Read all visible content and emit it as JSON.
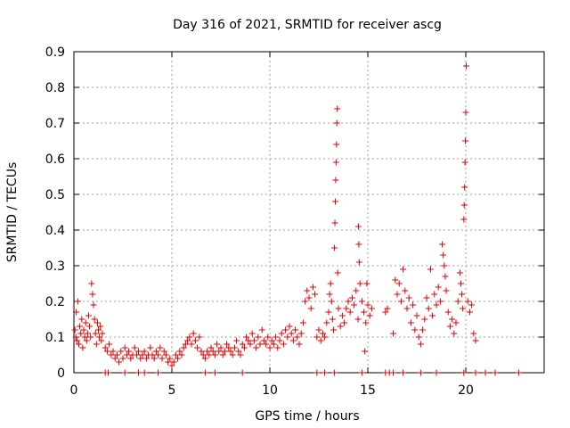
{
  "chart_data": {
    "type": "scatter",
    "title": "Day 316 of 2021, SRMTID for receiver ascg",
    "xlabel": "GPS time / hours",
    "ylabel": "SRMTID / TECUs",
    "xlim": [
      0,
      24
    ],
    "ylim": [
      0,
      0.9
    ],
    "x_ticks": [
      0,
      5,
      10,
      15,
      20
    ],
    "x_tick_labels": [
      "0",
      "5",
      "10",
      "15",
      "20"
    ],
    "y_ticks": [
      0,
      0.1,
      0.2,
      0.3,
      0.4,
      0.5,
      0.6,
      0.7,
      0.8,
      0.9
    ],
    "y_tick_labels": [
      "0",
      "0.1",
      "0.2",
      "0.3",
      "0.4",
      "0.5",
      "0.6",
      "0.7",
      "0.8",
      "0.9"
    ],
    "grid": true,
    "marker": "+",
    "color": "#e00000",
    "series": [
      {
        "name": "SRMTID",
        "points": [
          [
            0.05,
            0.12
          ],
          [
            0.1,
            0.1
          ],
          [
            0.12,
            0.17
          ],
          [
            0.15,
            0.09
          ],
          [
            0.2,
            0.2
          ],
          [
            0.25,
            0.08
          ],
          [
            0.3,
            0.13
          ],
          [
            0.35,
            0.11
          ],
          [
            0.4,
            0.15
          ],
          [
            0.45,
            0.07
          ],
          [
            0.5,
            0.12
          ],
          [
            0.55,
            0.1
          ],
          [
            0.6,
            0.14
          ],
          [
            0.65,
            0.09
          ],
          [
            0.7,
            0.11
          ],
          [
            0.75,
            0.16
          ],
          [
            0.8,
            0.13
          ],
          [
            0.85,
            0.1
          ],
          [
            0.9,
            0.25
          ],
          [
            0.95,
            0.22
          ],
          [
            1.0,
            0.19
          ],
          [
            1.05,
            0.15
          ],
          [
            1.1,
            0.11
          ],
          [
            1.15,
            0.08
          ],
          [
            1.2,
            0.14
          ],
          [
            1.25,
            0.12
          ],
          [
            1.3,
            0.1
          ],
          [
            1.35,
            0.13
          ],
          [
            1.4,
            0.09
          ],
          [
            1.45,
            0.11
          ],
          [
            1.6,
            0.07
          ],
          [
            1.7,
            0.06
          ],
          [
            1.8,
            0.08
          ],
          [
            1.9,
            0.05
          ],
          [
            2.0,
            0.06
          ],
          [
            2.1,
            0.04
          ],
          [
            2.2,
            0.05
          ],
          [
            2.3,
            0.03
          ],
          [
            2.4,
            0.06
          ],
          [
            2.5,
            0.04
          ],
          [
            2.6,
            0.07
          ],
          [
            2.7,
            0.05
          ],
          [
            2.8,
            0.06
          ],
          [
            2.9,
            0.04
          ],
          [
            3.0,
            0.05
          ],
          [
            3.1,
            0.07
          ],
          [
            3.2,
            0.05
          ],
          [
            3.3,
            0.06
          ],
          [
            3.4,
            0.04
          ],
          [
            3.5,
            0.05
          ],
          [
            3.6,
            0.06
          ],
          [
            3.7,
            0.04
          ],
          [
            3.8,
            0.05
          ],
          [
            3.9,
            0.07
          ],
          [
            4.0,
            0.05
          ],
          [
            4.1,
            0.04
          ],
          [
            4.2,
            0.06
          ],
          [
            4.3,
            0.05
          ],
          [
            4.4,
            0.07
          ],
          [
            4.5,
            0.04
          ],
          [
            4.6,
            0.06
          ],
          [
            4.7,
            0.05
          ],
          [
            4.8,
            0.03
          ],
          [
            4.9,
            0.04
          ],
          [
            5.0,
            0.02
          ],
          [
            5.1,
            0.03
          ],
          [
            5.2,
            0.05
          ],
          [
            5.3,
            0.04
          ],
          [
            5.4,
            0.06
          ],
          [
            5.5,
            0.05
          ],
          [
            5.6,
            0.07
          ],
          [
            5.7,
            0.08
          ],
          [
            5.8,
            0.09
          ],
          [
            5.9,
            0.1
          ],
          [
            6.0,
            0.08
          ],
          [
            6.1,
            0.11
          ],
          [
            6.2,
            0.09
          ],
          [
            6.3,
            0.07
          ],
          [
            6.4,
            0.1
          ],
          [
            6.5,
            0.06
          ],
          [
            6.6,
            0.05
          ],
          [
            6.7,
            0.04
          ],
          [
            6.8,
            0.06
          ],
          [
            6.9,
            0.05
          ],
          [
            7.0,
            0.07
          ],
          [
            7.1,
            0.06
          ],
          [
            7.2,
            0.05
          ],
          [
            7.3,
            0.08
          ],
          [
            7.4,
            0.06
          ],
          [
            7.5,
            0.07
          ],
          [
            7.6,
            0.05
          ],
          [
            7.7,
            0.06
          ],
          [
            7.8,
            0.08
          ],
          [
            7.9,
            0.07
          ],
          [
            8.0,
            0.06
          ],
          [
            8.1,
            0.05
          ],
          [
            8.2,
            0.07
          ],
          [
            8.3,
            0.09
          ],
          [
            8.4,
            0.06
          ],
          [
            8.5,
            0.05
          ],
          [
            8.6,
            0.08
          ],
          [
            8.7,
            0.07
          ],
          [
            8.8,
            0.1
          ],
          [
            8.9,
            0.09
          ],
          [
            9.0,
            0.08
          ],
          [
            9.1,
            0.11
          ],
          [
            9.2,
            0.09
          ],
          [
            9.3,
            0.07
          ],
          [
            9.4,
            0.1
          ],
          [
            9.5,
            0.08
          ],
          [
            9.6,
            0.12
          ],
          [
            9.7,
            0.09
          ],
          [
            9.8,
            0.08
          ],
          [
            9.9,
            0.1
          ],
          [
            10.0,
            0.07
          ],
          [
            10.1,
            0.09
          ],
          [
            10.2,
            0.08
          ],
          [
            10.3,
            0.1
          ],
          [
            10.4,
            0.07
          ],
          [
            10.5,
            0.09
          ],
          [
            10.6,
            0.11
          ],
          [
            10.7,
            0.08
          ],
          [
            10.8,
            0.12
          ],
          [
            10.9,
            0.1
          ],
          [
            11.0,
            0.13
          ],
          [
            11.1,
            0.11
          ],
          [
            11.2,
            0.09
          ],
          [
            11.3,
            0.12
          ],
          [
            11.4,
            0.1
          ],
          [
            11.5,
            0.08
          ],
          [
            11.6,
            0.11
          ],
          [
            11.7,
            0.14
          ],
          [
            11.8,
            0.2
          ],
          [
            11.9,
            0.23
          ],
          [
            12.0,
            0.21
          ],
          [
            12.1,
            0.18
          ],
          [
            12.2,
            0.24
          ],
          [
            12.3,
            0.22
          ],
          [
            12.4,
            0.1
          ],
          [
            12.5,
            0.12
          ],
          [
            12.6,
            0.09
          ],
          [
            12.7,
            0.11
          ],
          [
            12.8,
            0.1
          ],
          [
            12.9,
            0.14
          ],
          [
            13.0,
            0.17
          ],
          [
            13.05,
            0.22
          ],
          [
            13.1,
            0.25
          ],
          [
            13.15,
            0.2
          ],
          [
            13.2,
            0.15
          ],
          [
            13.25,
            0.12
          ],
          [
            13.3,
            0.35
          ],
          [
            13.32,
            0.42
          ],
          [
            13.34,
            0.48
          ],
          [
            13.36,
            0.54
          ],
          [
            13.38,
            0.59
          ],
          [
            13.4,
            0.64
          ],
          [
            13.42,
            0.7
          ],
          [
            13.44,
            0.74
          ],
          [
            13.46,
            0.28
          ],
          [
            13.5,
            0.18
          ],
          [
            13.6,
            0.13
          ],
          [
            13.7,
            0.16
          ],
          [
            13.8,
            0.14
          ],
          [
            13.9,
            0.18
          ],
          [
            14.0,
            0.2
          ],
          [
            14.1,
            0.17
          ],
          [
            14.2,
            0.21
          ],
          [
            14.3,
            0.19
          ],
          [
            14.4,
            0.23
          ],
          [
            14.5,
            0.15
          ],
          [
            14.52,
            0.41
          ],
          [
            14.54,
            0.36
          ],
          [
            14.56,
            0.31
          ],
          [
            14.6,
            0.25
          ],
          [
            14.7,
            0.2
          ],
          [
            14.8,
            0.17
          ],
          [
            14.85,
            0.06
          ],
          [
            14.9,
            0.14
          ],
          [
            14.95,
            0.25
          ],
          [
            15.0,
            0.19
          ],
          [
            15.1,
            0.16
          ],
          [
            15.2,
            0.18
          ],
          [
            15.9,
            0.17
          ],
          [
            16.0,
            0.18
          ],
          [
            16.3,
            0.11
          ],
          [
            16.4,
            0.26
          ],
          [
            16.5,
            0.22
          ],
          [
            16.6,
            0.25
          ],
          [
            16.7,
            0.2
          ],
          [
            16.8,
            0.29
          ],
          [
            16.9,
            0.23
          ],
          [
            17.0,
            0.18
          ],
          [
            17.1,
            0.21
          ],
          [
            17.2,
            0.14
          ],
          [
            17.3,
            0.19
          ],
          [
            17.4,
            0.12
          ],
          [
            17.5,
            0.16
          ],
          [
            17.6,
            0.1
          ],
          [
            17.7,
            0.08
          ],
          [
            17.8,
            0.12
          ],
          [
            17.9,
            0.15
          ],
          [
            18.0,
            0.21
          ],
          [
            18.1,
            0.18
          ],
          [
            18.2,
            0.29
          ],
          [
            18.3,
            0.16
          ],
          [
            18.4,
            0.22
          ],
          [
            18.5,
            0.19
          ],
          [
            18.6,
            0.24
          ],
          [
            18.7,
            0.2
          ],
          [
            18.8,
            0.36
          ],
          [
            18.85,
            0.33
          ],
          [
            18.9,
            0.3
          ],
          [
            18.95,
            0.27
          ],
          [
            19.0,
            0.23
          ],
          [
            19.1,
            0.17
          ],
          [
            19.2,
            0.13
          ],
          [
            19.3,
            0.15
          ],
          [
            19.4,
            0.11
          ],
          [
            19.5,
            0.14
          ],
          [
            19.6,
            0.2
          ],
          [
            19.7,
            0.28
          ],
          [
            19.75,
            0.25
          ],
          [
            19.8,
            0.22
          ],
          [
            19.85,
            0.18
          ],
          [
            19.9,
            0.43
          ],
          [
            19.92,
            0.47
          ],
          [
            19.94,
            0.52
          ],
          [
            19.96,
            0.59
          ],
          [
            19.98,
            0.65
          ],
          [
            20.0,
            0.73
          ],
          [
            20.02,
            0.86
          ],
          [
            20.1,
            0.2
          ],
          [
            20.2,
            0.17
          ],
          [
            20.3,
            0.19
          ],
          [
            20.4,
            0.11
          ],
          [
            20.5,
            0.09
          ],
          [
            1.6,
            0.0
          ],
          [
            1.75,
            0.0
          ],
          [
            2.6,
            0.0
          ],
          [
            3.3,
            0.0
          ],
          [
            3.6,
            0.0
          ],
          [
            4.3,
            0.0
          ],
          [
            6.7,
            0.0
          ],
          [
            7.2,
            0.0
          ],
          [
            8.6,
            0.0
          ],
          [
            12.4,
            0.0
          ],
          [
            12.8,
            0.0
          ],
          [
            13.3,
            0.0
          ],
          [
            14.7,
            0.0
          ],
          [
            15.9,
            0.0
          ],
          [
            16.1,
            0.0
          ],
          [
            16.3,
            0.0
          ],
          [
            16.8,
            0.0
          ],
          [
            17.7,
            0.0
          ],
          [
            18.5,
            0.0
          ],
          [
            19.9,
            0.0
          ],
          [
            20.5,
            0.0
          ],
          [
            21.0,
            0.0
          ],
          [
            21.5,
            0.0
          ],
          [
            22.7,
            0.0
          ]
        ]
      }
    ]
  }
}
